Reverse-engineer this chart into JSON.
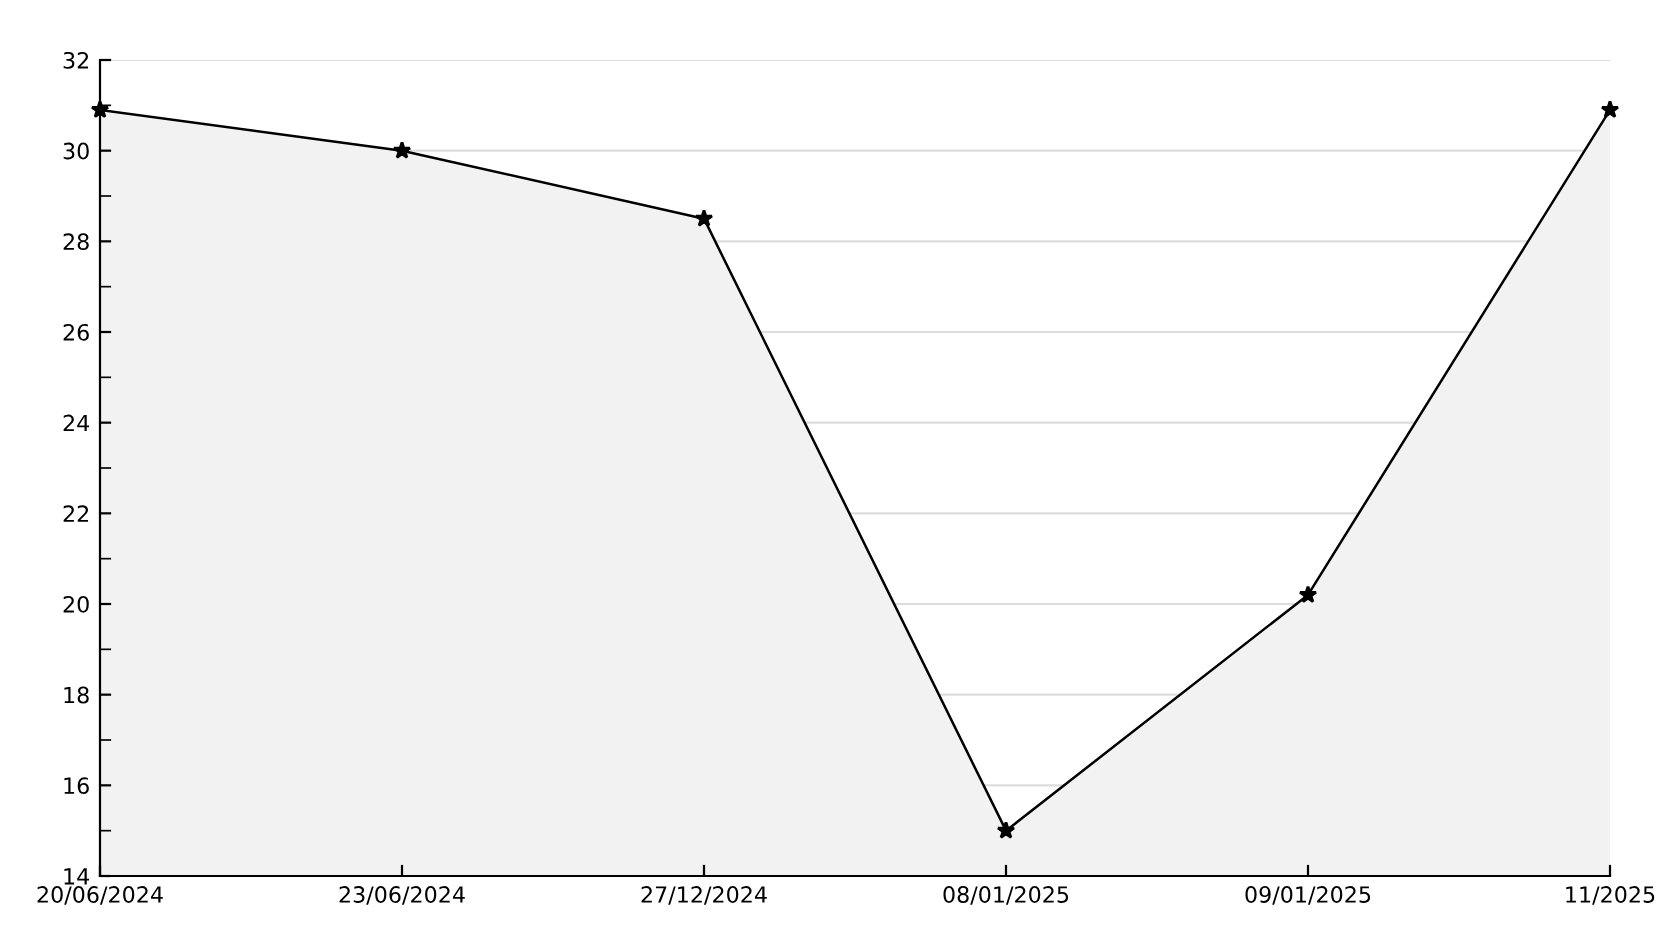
{
  "chart_data": {
    "type": "area",
    "categories": [
      "20/06/2024",
      "23/06/2024",
      "27/12/2024",
      "08/01/2025",
      "09/01/2025",
      "11/2025"
    ],
    "series": [
      {
        "color": "#000000",
        "values": [
          30.9,
          30.0,
          28.5,
          15.0,
          20.2,
          30.9
        ]
      }
    ],
    "ylim": [
      14,
      32
    ],
    "yticks": [
      14,
      {
        "value": 15,
        "label": null
      },
      16,
      {
        "value": 17,
        "label": null
      },
      18,
      {
        "value": 19,
        "label": null
      },
      20,
      {
        "value": 21,
        "label": null
      },
      22,
      {
        "value": 23,
        "label": null
      },
      24,
      {
        "value": 25,
        "label": null
      },
      26,
      {
        "value": 27,
        "label": null
      },
      28,
      {
        "value": 29,
        "label": null
      },
      30,
      {
        "value": 31,
        "label": null
      },
      32
    ],
    "grid": "y",
    "marker": "star",
    "line_style": "solid"
  }
}
